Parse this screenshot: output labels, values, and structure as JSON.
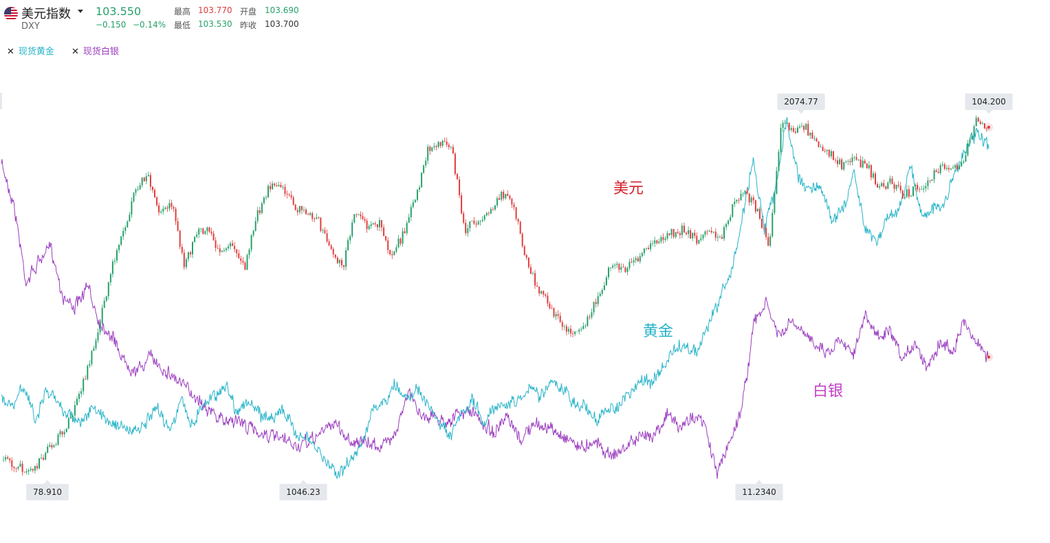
{
  "header": {
    "name": "美元指数",
    "code": "DXY",
    "price": "103.550",
    "change": "−0.150",
    "change_pct": "−0.14%",
    "stats": {
      "high_label": "最高",
      "high": "103.770",
      "open_label": "开盘",
      "open": "103.690",
      "low_label": "最低",
      "low": "103.530",
      "prev_label": "昨收",
      "prev_close": "103.700"
    }
  },
  "legend": [
    {
      "label": "现货黄金",
      "color": "#26b3c8"
    },
    {
      "label": "现货白银",
      "color": "#9b3dbf"
    }
  ],
  "colors": {
    "up": "#26a06a",
    "down": "#e03c3c",
    "gold": "#26b3c8",
    "silver": "#9b3dbf",
    "usd_label": "#d6202a",
    "silver_label": "#c23fc7"
  },
  "chart_data": {
    "type": "line",
    "series": [
      {
        "name": "美元",
        "style": "candlestick",
        "label": "美元",
        "y": [
          79.6,
          79.2,
          78.9,
          79.3,
          80.5,
          81.6,
          83.2,
          85.9,
          89.1,
          93.2,
          96.0,
          99.1,
          100.0,
          97.1,
          98.2,
          93.3,
          96.0,
          96.2,
          94.4,
          95.1,
          93.6,
          97.3,
          99.2,
          99.4,
          97.8,
          97.4,
          96.8,
          94.9,
          93.3,
          97.5,
          96.5,
          96.6,
          94.3,
          95.9,
          98.5,
          102.0,
          102.4,
          101.8,
          96.1,
          96.9,
          97.3,
          98.7,
          98.0,
          94.2,
          91.8,
          90.7,
          89.3,
          88.5,
          89.4,
          91.5,
          93.6,
          93.3,
          94.0,
          94.9,
          95.5,
          95.9,
          96.2,
          95.5,
          95.9,
          95.6,
          97.8,
          98.8,
          97.6,
          95.0,
          103.8,
          103.3,
          103.5,
          102.4,
          101.7,
          100.8,
          101.2,
          100.8,
          99.1,
          99.7,
          98.6,
          99.1,
          99.6,
          100.6,
          100.4,
          101.4,
          104.2,
          103.55
        ],
        "range": [
          78.91,
          104.2
        ]
      },
      {
        "name": "现货黄金",
        "label": "黄金",
        "y": [
          1258,
          1235,
          1300,
          1200,
          1285,
          1248,
          1215,
          1194,
          1225,
          1213,
          1190,
          1173,
          1165,
          1193,
          1232,
          1175,
          1255,
          1185,
          1248,
          1270,
          1305,
          1225,
          1255,
          1215,
          1205,
          1230,
          1175,
          1148,
          1120,
          1075,
          1046,
          1072,
          1128,
          1218,
          1242,
          1300,
          1270,
          1290,
          1240,
          1195,
          1145,
          1212,
          1255,
          1192,
          1245,
          1245,
          1255,
          1295,
          1270,
          1310,
          1290,
          1250,
          1240,
          1200,
          1225,
          1245,
          1275,
          1315,
          1310,
          1350,
          1405,
          1415,
          1395,
          1470,
          1550,
          1620,
          1780,
          1960,
          1750,
          1870,
          2074.77,
          1900,
          1870,
          1875,
          1785,
          1810,
          1920,
          1760,
          1720,
          1790,
          1810,
          1940,
          1795,
          1810,
          1820,
          1920,
          1985,
          2040,
          1980
        ],
        "range": [
          1046.23,
          2074.77
        ]
      },
      {
        "name": "现货白银",
        "label": "白银",
        "y": [
          42.5,
          38.4,
          30.5,
          32.5,
          34.2,
          29.0,
          28.0,
          30.0,
          26.5,
          25.0,
          22.5,
          21.5,
          23.0,
          22.0,
          21.0,
          19.8,
          18.8,
          17.5,
          16.5,
          16.8,
          15.9,
          15.5,
          15.0,
          14.5,
          14.0,
          14.5,
          15.5,
          16.5,
          14.8,
          14.4,
          14.3,
          14.1,
          15.7,
          19.5,
          17.3,
          17.0,
          16.5,
          17.2,
          17.6,
          16.4,
          15.4,
          16.8,
          14.7,
          16.0,
          16.2,
          15.3,
          14.9,
          13.9,
          14.7,
          13.5,
          13.3,
          14.5,
          15.0,
          15.5,
          17.3,
          15.8,
          17.2,
          16.0,
          11.234,
          14.5,
          18.0,
          26.5,
          28.3,
          25.0,
          26.5,
          25.3,
          24.5,
          23.5,
          25.0,
          23.5,
          27.0,
          25.0,
          25.5,
          22.5,
          24.5,
          22.0,
          24.5,
          23.5,
          26.5,
          24.5,
          23.0
        ],
        "range": [
          11.234,
          42.5
        ]
      }
    ],
    "extreme_labels": [
      {
        "series": "美元",
        "text": "78.910",
        "type": "min"
      },
      {
        "series": "美元",
        "text": "104.200",
        "type": "max"
      },
      {
        "series": "现货黄金",
        "text": "1046.23",
        "type": "min"
      },
      {
        "series": "现货黄金",
        "text": "2074.77",
        "type": "max"
      },
      {
        "series": "现货白银",
        "text": "11.2340",
        "type": "min"
      }
    ],
    "title": "",
    "xlabel": "",
    "ylabel": "",
    "grid": false
  }
}
